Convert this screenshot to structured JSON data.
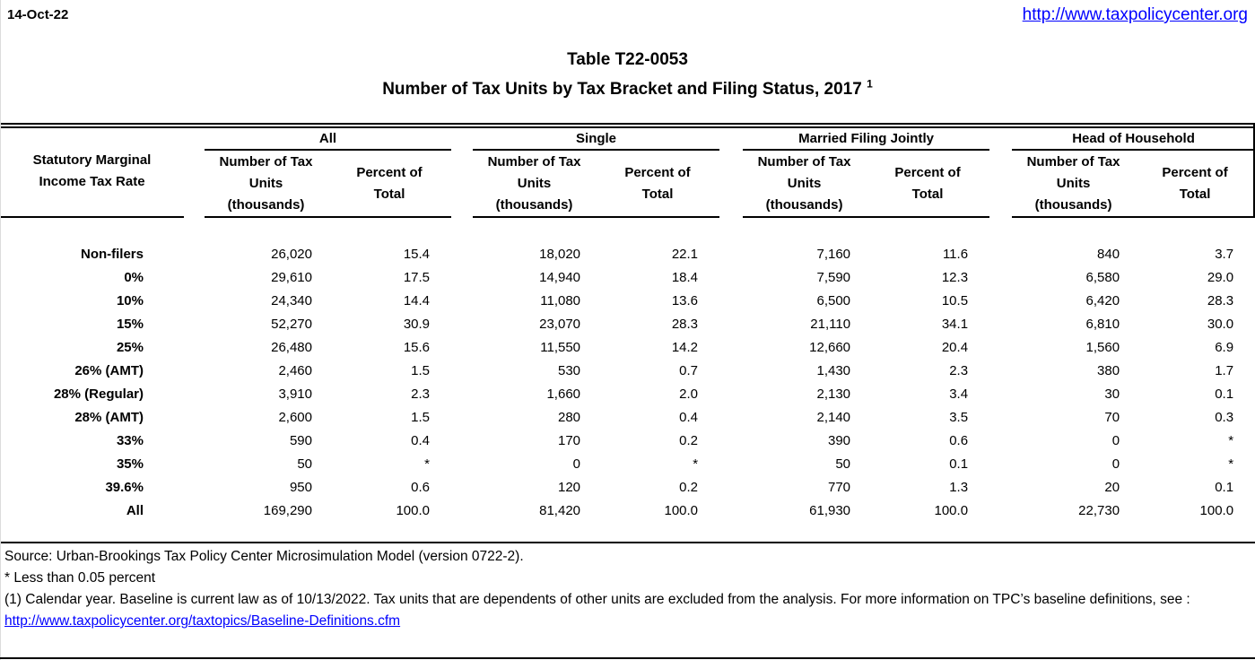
{
  "page": {
    "date": "14-Oct-22",
    "site_url": "http://www.taxpolicycenter.org"
  },
  "colors": {
    "link": "#0000FF",
    "text": "#000000",
    "background": "#FFFFFF",
    "rule": "#000000"
  },
  "title": {
    "line1": "Table T22-0053",
    "line2": "Number of Tax Units by Tax Bracket and Filing Status, 2017",
    "footnote_marker": "1"
  },
  "table": {
    "stub_header": "Statutory Marginal Income Tax Rate",
    "groups": [
      {
        "label": "All"
      },
      {
        "label": "Single"
      },
      {
        "label": "Married Filing Jointly"
      },
      {
        "label": "Head of Household"
      }
    ],
    "subheaders": {
      "units": "Number of Tax Units (thousands)",
      "percent": "Percent of Total"
    },
    "rows": [
      {
        "label": "Non-filers",
        "values": [
          "26,020",
          "15.4",
          "18,020",
          "22.1",
          "7,160",
          "11.6",
          "840",
          "3.7"
        ]
      },
      {
        "label": "0%",
        "values": [
          "29,610",
          "17.5",
          "14,940",
          "18.4",
          "7,590",
          "12.3",
          "6,580",
          "29.0"
        ]
      },
      {
        "label": "10%",
        "values": [
          "24,340",
          "14.4",
          "11,080",
          "13.6",
          "6,500",
          "10.5",
          "6,420",
          "28.3"
        ]
      },
      {
        "label": "15%",
        "values": [
          "52,270",
          "30.9",
          "23,070",
          "28.3",
          "21,110",
          "34.1",
          "6,810",
          "30.0"
        ]
      },
      {
        "label": "25%",
        "values": [
          "26,480",
          "15.6",
          "11,550",
          "14.2",
          "12,660",
          "20.4",
          "1,560",
          "6.9"
        ]
      },
      {
        "label": "26% (AMT)",
        "values": [
          "2,460",
          "1.5",
          "530",
          "0.7",
          "1,430",
          "2.3",
          "380",
          "1.7"
        ]
      },
      {
        "label": "28% (Regular)",
        "values": [
          "3,910",
          "2.3",
          "1,660",
          "2.0",
          "2,130",
          "3.4",
          "30",
          "0.1"
        ]
      },
      {
        "label": "28% (AMT)",
        "values": [
          "2,600",
          "1.5",
          "280",
          "0.4",
          "2,140",
          "3.5",
          "70",
          "0.3"
        ]
      },
      {
        "label": "33%",
        "values": [
          "590",
          "0.4",
          "170",
          "0.2",
          "390",
          "0.6",
          "0",
          "*"
        ]
      },
      {
        "label": "35%",
        "values": [
          "50",
          "*",
          "0",
          "*",
          "50",
          "0.1",
          "0",
          "*"
        ]
      },
      {
        "label": "39.6%",
        "values": [
          "950",
          "0.6",
          "120",
          "0.2",
          "770",
          "1.3",
          "20",
          "0.1"
        ]
      },
      {
        "label": "All",
        "values": [
          "169,290",
          "100.0",
          "81,420",
          "100.0",
          "61,930",
          "100.0",
          "22,730",
          "100.0"
        ]
      }
    ]
  },
  "footer": {
    "source": "Source: Urban-Brookings Tax Policy Center Microsimulation Model (version 0722-2).",
    "asterisk_note": "* Less than 0.05 percent",
    "note1": "(1) Calendar year. Baseline is current law as of 10/13/2022. Tax units that are dependents of other units are excluded from the analysis. For more information on TPC’s baseline definitions, see :",
    "link": "http://www.taxpolicycenter.org/taxtopics/Baseline-Definitions.cfm"
  }
}
